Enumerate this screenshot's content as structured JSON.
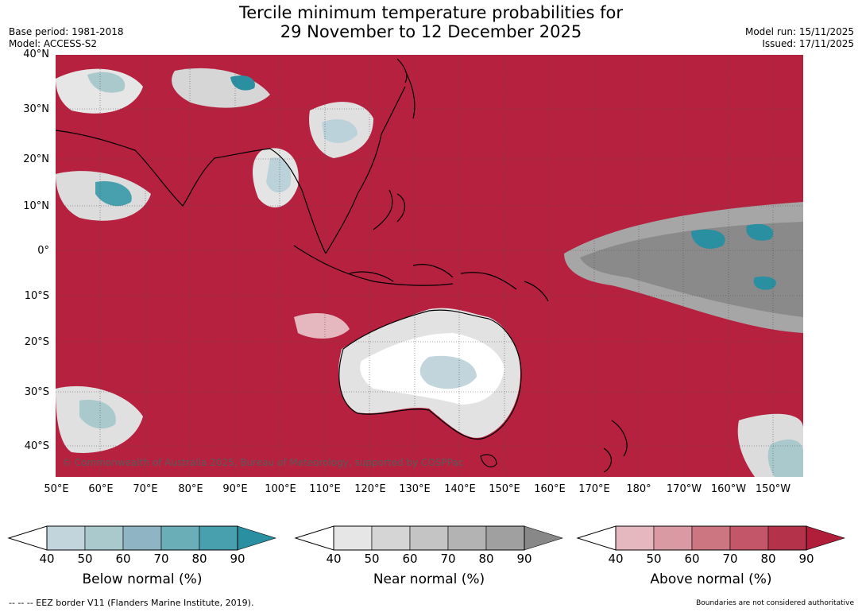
{
  "title": {
    "line1": "Tercile minimum temperature probabilities for",
    "line2": "29 November to 12 December 2025"
  },
  "meta": {
    "base_period": "Base period: 1981-2018",
    "model": "Model: ACCESS-S2",
    "model_run": "Model run: 15/11/2025",
    "issued": "Issued: 17/11/2025"
  },
  "map": {
    "latitude_labels": [
      "40°N",
      "30°N",
      "20°N",
      "10°N",
      "0°",
      "10°S",
      "20°S",
      "30°S",
      "40°S"
    ],
    "longitude_labels": [
      "50°E",
      "60°E",
      "70°E",
      "80°E",
      "90°E",
      "100°E",
      "110°E",
      "120°E",
      "130°E",
      "140°E",
      "150°E",
      "160°E",
      "170°E",
      "180°",
      "170°W",
      "160°W",
      "150°W"
    ],
    "copyright": "© Commonwealth of Australia 2025, Bureau of Meteorology, supported by COSPPac"
  },
  "colorbars": [
    {
      "title": "Below normal (%)",
      "ticks": [
        "40",
        "50",
        "60",
        "70",
        "80",
        "90"
      ],
      "colors": [
        "#c2d5dc",
        "#a9c9cc",
        "#8fb4c3",
        "#6aaeb8",
        "#48a0ae",
        "#2a8fa0"
      ]
    },
    {
      "title": "Near normal (%)",
      "ticks": [
        "40",
        "50",
        "60",
        "70",
        "80",
        "90"
      ],
      "colors": [
        "#e6e6e6",
        "#d5d5d5",
        "#c4c4c4",
        "#b3b3b3",
        "#a0a0a0",
        "#888888"
      ]
    },
    {
      "title": "Above normal (%)",
      "ticks": [
        "40",
        "50",
        "60",
        "70",
        "80",
        "90"
      ],
      "colors": [
        "#e4b8be",
        "#d99aa3",
        "#cc7681",
        "#c35668",
        "#b5334a",
        "#b01e3a"
      ]
    }
  ],
  "footer": {
    "eez": "--  --  -- EEZ border V11 (Flanders Marine Institute, 2019).",
    "note": "Boundaries are not considered authoritative"
  }
}
